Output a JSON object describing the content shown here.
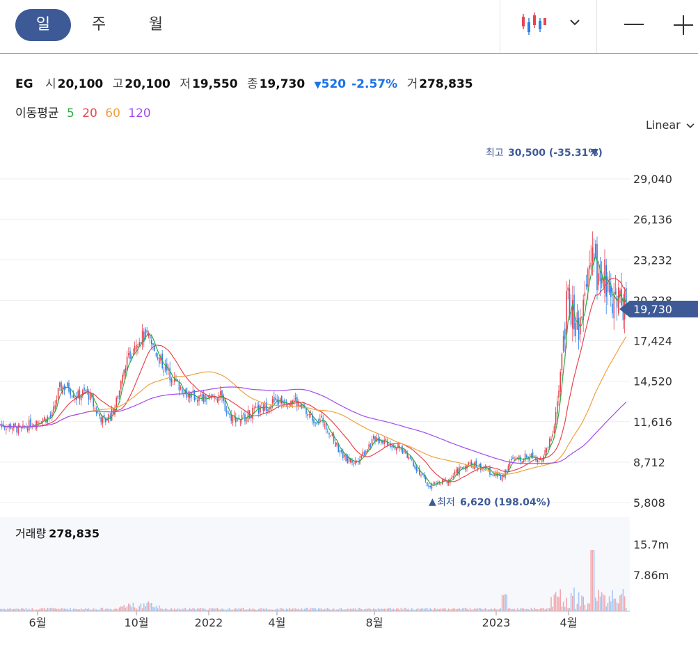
{
  "periods": [
    "일",
    "주",
    "월"
  ],
  "active_period": "일",
  "quote": {
    "symbol": "EG",
    "open_label": "시",
    "open": "20,100",
    "high_label": "고",
    "high": "20,100",
    "low_label": "저",
    "low": "19,550",
    "close_label": "종",
    "close": "19,730",
    "change": "520",
    "change_pct": "-2.57%",
    "volume_label": "거",
    "volume": "278,835"
  },
  "moving_average": {
    "label": "이동평균",
    "periods": [
      "5",
      "20",
      "60",
      "120"
    ],
    "colors": [
      "#2eaa44",
      "#e8454f",
      "#f0a040",
      "#a04bf0"
    ]
  },
  "scale_mode": "Linear",
  "volume_panel": {
    "label": "거래량",
    "value": "278,835"
  },
  "colors": {
    "up": "#e8454f",
    "down": "#2f7fe8",
    "accent": "#3d5a96"
  },
  "chart_data": {
    "type": "candlestick",
    "price_axis_ticks": [
      "29,040",
      "26,136",
      "23,232",
      "20,328",
      "17,424",
      "14,520",
      "11,616",
      "8,712",
      "5,808"
    ],
    "price_axis_values": [
      29040,
      26136,
      23232,
      20328,
      17424,
      14520,
      11616,
      8712,
      5808
    ],
    "ylim": [
      5300,
      31000
    ],
    "time_axis_ticks": [
      "6월",
      "10월",
      "2022",
      "4월",
      "8월",
      "2023",
      "4월"
    ],
    "volume_axis_ticks": [
      "15.7m",
      "7.86m"
    ],
    "high_annotation": {
      "label": "최고",
      "value": "30,500 (-35.31%)"
    },
    "low_annotation": {
      "label": "최저",
      "value": "6,620 (198.04%)"
    },
    "last_price": "19,730",
    "close_path": [
      [
        0,
        11400
      ],
      [
        15,
        11300
      ],
      [
        30,
        11000
      ],
      [
        45,
        11500
      ],
      [
        60,
        11800
      ],
      [
        75,
        12000
      ],
      [
        85,
        14000
      ],
      [
        95,
        14200
      ],
      [
        110,
        13400
      ],
      [
        125,
        13800
      ],
      [
        140,
        12200
      ],
      [
        150,
        11600
      ],
      [
        165,
        12600
      ],
      [
        180,
        15500
      ],
      [
        195,
        17500
      ],
      [
        210,
        17800
      ],
      [
        225,
        16500
      ],
      [
        240,
        15200
      ],
      [
        255,
        14300
      ],
      [
        270,
        13600
      ],
      [
        285,
        13300
      ],
      [
        300,
        13200
      ],
      [
        315,
        13600
      ],
      [
        330,
        12000
      ],
      [
        345,
        11800
      ],
      [
        360,
        12200
      ],
      [
        375,
        12500
      ],
      [
        390,
        13000
      ],
      [
        405,
        13100
      ],
      [
        420,
        13300
      ],
      [
        435,
        12500
      ],
      [
        450,
        11800
      ],
      [
        465,
        11700
      ],
      [
        480,
        10200
      ],
      [
        495,
        9000
      ],
      [
        510,
        8700
      ],
      [
        525,
        9600
      ],
      [
        540,
        10500
      ],
      [
        555,
        10200
      ],
      [
        570,
        9800
      ],
      [
        585,
        9300
      ],
      [
        600,
        8200
      ],
      [
        615,
        7000
      ],
      [
        630,
        7200
      ],
      [
        645,
        7400
      ],
      [
        660,
        8200
      ],
      [
        675,
        8600
      ],
      [
        690,
        8400
      ],
      [
        705,
        8000
      ],
      [
        720,
        7600
      ],
      [
        735,
        8800
      ],
      [
        750,
        9000
      ],
      [
        765,
        9200
      ],
      [
        780,
        8900
      ],
      [
        795,
        11000
      ],
      [
        805,
        14500
      ],
      [
        815,
        20500
      ],
      [
        825,
        19000
      ],
      [
        835,
        18000
      ],
      [
        845,
        22000
      ],
      [
        852,
        24500
      ],
      [
        860,
        21500
      ],
      [
        870,
        22000
      ],
      [
        880,
        20500
      ],
      [
        890,
        20200
      ],
      [
        900,
        19730
      ]
    ]
  }
}
